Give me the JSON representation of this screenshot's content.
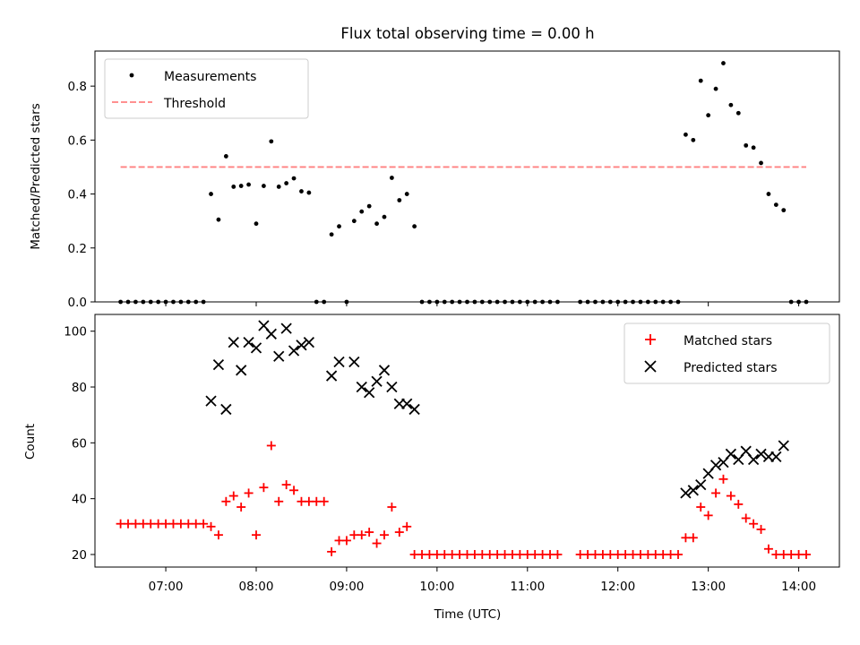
{
  "figure": {
    "title": "Flux total observing time = 0.00 h"
  },
  "colors": {
    "measurements": "#000000",
    "threshold": "#ff8080",
    "matched": "#ff0000",
    "predicted": "#000000"
  },
  "chart_data": [
    {
      "type": "scatter",
      "title": "Flux total observing time = 0.00 h",
      "xlabel": "",
      "ylabel": "Matched/Predicted stars",
      "xlim": [
        "06:13",
        "14:27"
      ],
      "ylim": [
        0,
        0.93
      ],
      "yticks": [
        0.0,
        0.2,
        0.4,
        0.6,
        0.8
      ],
      "ytick_labels": [
        "0.0",
        "0.2",
        "0.4",
        "0.6",
        "0.8"
      ],
      "xticks": [
        "07:00",
        "08:00",
        "09:00",
        "10:00",
        "11:00",
        "12:00",
        "13:00",
        "14:00"
      ],
      "grid": false,
      "legend_position": "upper left",
      "series": [
        {
          "name": "Measurements",
          "marker": "dot",
          "points": [
            [
              "06:30",
              0
            ],
            [
              "06:35",
              0
            ],
            [
              "06:40",
              0
            ],
            [
              "06:45",
              0
            ],
            [
              "06:50",
              0
            ],
            [
              "06:55",
              0
            ],
            [
              "07:00",
              0
            ],
            [
              "07:05",
              0
            ],
            [
              "07:10",
              0
            ],
            [
              "07:15",
              0
            ],
            [
              "07:20",
              0
            ],
            [
              "07:25",
              0
            ],
            [
              "07:30",
              0.4
            ],
            [
              "07:35",
              0.305
            ],
            [
              "07:40",
              0.54
            ],
            [
              "07:45",
              0.427
            ],
            [
              "07:50",
              0.43
            ],
            [
              "07:55",
              0.435
            ],
            [
              "08:00",
              0.29
            ],
            [
              "08:05",
              0.43
            ],
            [
              "08:10",
              0.595
            ],
            [
              "08:15",
              0.427
            ],
            [
              "08:20",
              0.44
            ],
            [
              "08:25",
              0.458
            ],
            [
              "08:30",
              0.41
            ],
            [
              "08:35",
              0.405
            ],
            [
              "08:40",
              0
            ],
            [
              "08:45",
              0
            ],
            [
              "08:50",
              0.25
            ],
            [
              "08:55",
              0.28
            ],
            [
              "09:00",
              0
            ],
            [
              "09:05",
              0.3
            ],
            [
              "09:10",
              0.335
            ],
            [
              "09:15",
              0.355
            ],
            [
              "09:20",
              0.29
            ],
            [
              "09:25",
              0.315
            ],
            [
              "09:30",
              0.46
            ],
            [
              "09:35",
              0.377
            ],
            [
              "09:40",
              0.4
            ],
            [
              "09:45",
              0.28
            ],
            [
              "09:50",
              0
            ],
            [
              "09:55",
              0
            ],
            [
              "10:00",
              0
            ],
            [
              "10:05",
              0
            ],
            [
              "10:10",
              0
            ],
            [
              "10:15",
              0
            ],
            [
              "10:20",
              0
            ],
            [
              "10:25",
              0
            ],
            [
              "10:30",
              0
            ],
            [
              "10:35",
              0
            ],
            [
              "10:40",
              0
            ],
            [
              "10:45",
              0
            ],
            [
              "10:50",
              0
            ],
            [
              "10:55",
              0
            ],
            [
              "11:00",
              0
            ],
            [
              "11:05",
              0
            ],
            [
              "11:10",
              0
            ],
            [
              "11:15",
              0
            ],
            [
              "11:20",
              0
            ],
            [
              "11:35",
              0
            ],
            [
              "11:40",
              0
            ],
            [
              "11:45",
              0
            ],
            [
              "11:50",
              0
            ],
            [
              "11:55",
              0
            ],
            [
              "12:00",
              0
            ],
            [
              "12:05",
              0
            ],
            [
              "12:10",
              0
            ],
            [
              "12:15",
              0
            ],
            [
              "12:20",
              0
            ],
            [
              "12:25",
              0
            ],
            [
              "12:30",
              0
            ],
            [
              "12:35",
              0
            ],
            [
              "12:40",
              0
            ],
            [
              "12:45",
              0.62
            ],
            [
              "12:50",
              0.6
            ],
            [
              "12:55",
              0.82
            ],
            [
              "13:00",
              0.692
            ],
            [
              "13:05",
              0.79
            ],
            [
              "13:10",
              0.885
            ],
            [
              "13:15",
              0.73
            ],
            [
              "13:20",
              0.7
            ],
            [
              "13:25",
              0.58
            ],
            [
              "13:30",
              0.572
            ],
            [
              "13:35",
              0.515
            ],
            [
              "13:40",
              0.4
            ],
            [
              "13:45",
              0.36
            ],
            [
              "13:50",
              0.34
            ],
            [
              "13:55",
              0
            ],
            [
              "14:00",
              0
            ],
            [
              "14:05",
              0
            ]
          ]
        },
        {
          "name": "Threshold",
          "marker": "dashed-line",
          "points": [
            [
              "06:30",
              0.5
            ],
            [
              "14:05",
              0.5
            ]
          ]
        }
      ]
    },
    {
      "type": "scatter",
      "title": "",
      "xlabel": "Time (UTC)",
      "ylabel": "Count",
      "xlim": [
        "06:13",
        "14:27"
      ],
      "ylim": [
        15.5,
        106
      ],
      "yticks": [
        20,
        40,
        60,
        80,
        100
      ],
      "ytick_labels": [
        "20",
        "40",
        "60",
        "80",
        "100"
      ],
      "xticks": [
        "07:00",
        "08:00",
        "09:00",
        "10:00",
        "11:00",
        "12:00",
        "13:00",
        "14:00"
      ],
      "grid": false,
      "legend_position": "upper right",
      "series": [
        {
          "name": "Matched stars",
          "marker": "plus",
          "points": [
            [
              "06:30",
              31
            ],
            [
              "06:35",
              31
            ],
            [
              "06:40",
              31
            ],
            [
              "06:45",
              31
            ],
            [
              "06:50",
              31
            ],
            [
              "06:55",
              31
            ],
            [
              "07:00",
              31
            ],
            [
              "07:05",
              31
            ],
            [
              "07:10",
              31
            ],
            [
              "07:15",
              31
            ],
            [
              "07:20",
              31
            ],
            [
              "07:25",
              31
            ],
            [
              "07:30",
              30
            ],
            [
              "07:35",
              27
            ],
            [
              "07:40",
              39
            ],
            [
              "07:45",
              41
            ],
            [
              "07:50",
              37
            ],
            [
              "07:55",
              42
            ],
            [
              "08:00",
              27
            ],
            [
              "08:05",
              44
            ],
            [
              "08:10",
              59
            ],
            [
              "08:15",
              39
            ],
            [
              "08:20",
              45
            ],
            [
              "08:25",
              43
            ],
            [
              "08:30",
              39
            ],
            [
              "08:35",
              39
            ],
            [
              "08:40",
              39
            ],
            [
              "08:45",
              39
            ],
            [
              "08:50",
              21
            ],
            [
              "08:55",
              25
            ],
            [
              "09:00",
              25
            ],
            [
              "09:05",
              27
            ],
            [
              "09:10",
              27
            ],
            [
              "09:15",
              28
            ],
            [
              "09:20",
              24
            ],
            [
              "09:25",
              27
            ],
            [
              "09:30",
              37
            ],
            [
              "09:35",
              28
            ],
            [
              "09:40",
              30
            ],
            [
              "09:45",
              20
            ],
            [
              "09:50",
              20
            ],
            [
              "09:55",
              20
            ],
            [
              "10:00",
              20
            ],
            [
              "10:05",
              20
            ],
            [
              "10:10",
              20
            ],
            [
              "10:15",
              20
            ],
            [
              "10:20",
              20
            ],
            [
              "10:25",
              20
            ],
            [
              "10:30",
              20
            ],
            [
              "10:35",
              20
            ],
            [
              "10:40",
              20
            ],
            [
              "10:45",
              20
            ],
            [
              "10:50",
              20
            ],
            [
              "10:55",
              20
            ],
            [
              "11:00",
              20
            ],
            [
              "11:05",
              20
            ],
            [
              "11:10",
              20
            ],
            [
              "11:15",
              20
            ],
            [
              "11:20",
              20
            ],
            [
              "11:35",
              20
            ],
            [
              "11:40",
              20
            ],
            [
              "11:45",
              20
            ],
            [
              "11:50",
              20
            ],
            [
              "11:55",
              20
            ],
            [
              "12:00",
              20
            ],
            [
              "12:05",
              20
            ],
            [
              "12:10",
              20
            ],
            [
              "12:15",
              20
            ],
            [
              "12:20",
              20
            ],
            [
              "12:25",
              20
            ],
            [
              "12:30",
              20
            ],
            [
              "12:35",
              20
            ],
            [
              "12:40",
              20
            ],
            [
              "12:45",
              26
            ],
            [
              "12:50",
              26
            ],
            [
              "12:55",
              37
            ],
            [
              "13:00",
              34
            ],
            [
              "13:05",
              42
            ],
            [
              "13:10",
              47
            ],
            [
              "13:15",
              41
            ],
            [
              "13:20",
              38
            ],
            [
              "13:25",
              33
            ],
            [
              "13:30",
              31
            ],
            [
              "13:35",
              29
            ],
            [
              "13:40",
              22
            ],
            [
              "13:45",
              20
            ],
            [
              "13:50",
              20
            ],
            [
              "13:55",
              20
            ],
            [
              "14:00",
              20
            ],
            [
              "14:05",
              20
            ]
          ]
        },
        {
          "name": "Predicted stars",
          "marker": "x",
          "points": [
            [
              "07:30",
              75
            ],
            [
              "07:35",
              88
            ],
            [
              "07:40",
              72
            ],
            [
              "07:45",
              96
            ],
            [
              "07:50",
              86
            ],
            [
              "07:55",
              96
            ],
            [
              "08:00",
              94
            ],
            [
              "08:05",
              102
            ],
            [
              "08:10",
              99
            ],
            [
              "08:15",
              91
            ],
            [
              "08:20",
              101
            ],
            [
              "08:25",
              93
            ],
            [
              "08:30",
              95
            ],
            [
              "08:35",
              96
            ],
            [
              "08:50",
              84
            ],
            [
              "08:55",
              89
            ],
            [
              "09:05",
              89
            ],
            [
              "09:10",
              80
            ],
            [
              "09:15",
              78
            ],
            [
              "09:20",
              82
            ],
            [
              "09:25",
              86
            ],
            [
              "09:30",
              80
            ],
            [
              "09:35",
              74
            ],
            [
              "09:40",
              74
            ],
            [
              "09:45",
              72
            ],
            [
              "12:45",
              42
            ],
            [
              "12:50",
              43
            ],
            [
              "12:55",
              45
            ],
            [
              "13:00",
              49
            ],
            [
              "13:05",
              52
            ],
            [
              "13:10",
              53
            ],
            [
              "13:15",
              56
            ],
            [
              "13:20",
              54
            ],
            [
              "13:25",
              57
            ],
            [
              "13:30",
              54
            ],
            [
              "13:35",
              56
            ],
            [
              "13:40",
              55
            ],
            [
              "13:45",
              55
            ],
            [
              "13:50",
              59
            ]
          ]
        }
      ]
    }
  ]
}
